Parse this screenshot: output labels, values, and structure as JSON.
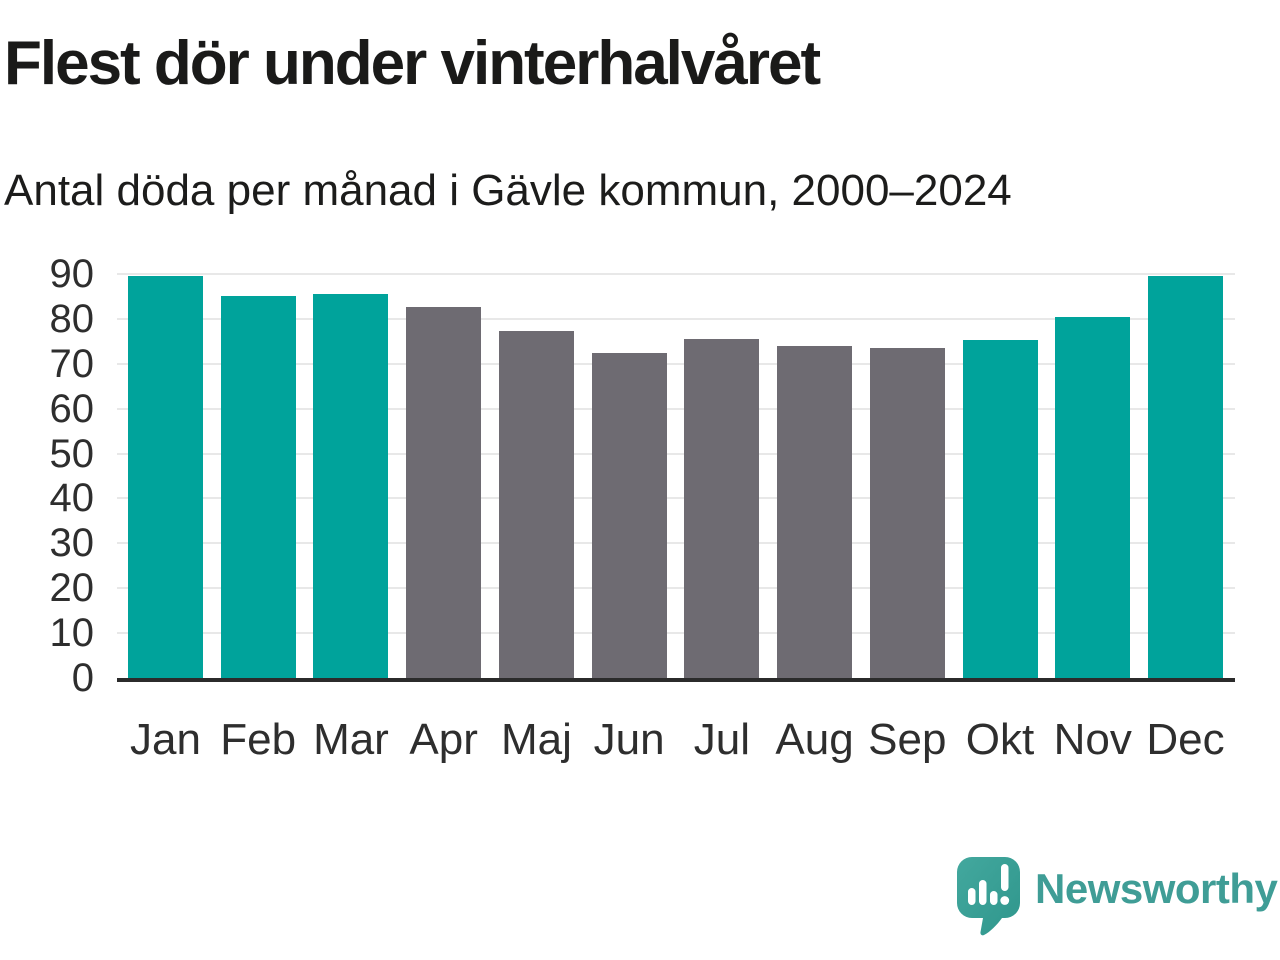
{
  "title": "Flest dör under vinterhalvåret",
  "subtitle": "Antal döda per månad i Gävle kommun, 2000–2024",
  "brand": {
    "name": "Newsworthy",
    "icon": "speech-bubble-bar-chart-exclamation-icon",
    "icon_color": "#3ba197",
    "text_color": "#3f9d96"
  },
  "colors": {
    "winter_bar": "#00a39b",
    "summer_bar": "#6e6b72",
    "gridline": "#e8e8e8",
    "axis_line": "#2b2b2b",
    "text": "#1a1a19",
    "tick_text": "#2e2e2e"
  },
  "chart_data": {
    "type": "bar",
    "title": "Flest dör under vinterhalvåret",
    "subtitle": "Antal döda per månad i Gävle kommun, 2000–2024",
    "categories": [
      "Jan",
      "Feb",
      "Mar",
      "Apr",
      "Maj",
      "Jun",
      "Jul",
      "Aug",
      "Sep",
      "Okt",
      "Nov",
      "Dec"
    ],
    "values": [
      89.6,
      85.0,
      85.6,
      82.7,
      77.3,
      72.3,
      75.6,
      73.9,
      73.5,
      75.2,
      80.5,
      89.5
    ],
    "bar_groups": [
      "winter",
      "winter",
      "winter",
      "summer",
      "summer",
      "summer",
      "summer",
      "summer",
      "summer",
      "winter",
      "winter",
      "winter"
    ],
    "group_colors": {
      "winter": "#00a39b",
      "summer": "#6e6b72"
    },
    "xlabel": "",
    "ylabel": "",
    "ylim": [
      0,
      90
    ],
    "yticks": [
      0,
      10,
      20,
      30,
      40,
      50,
      60,
      70,
      80,
      90
    ],
    "grid": "horizontal",
    "legend": "none"
  }
}
